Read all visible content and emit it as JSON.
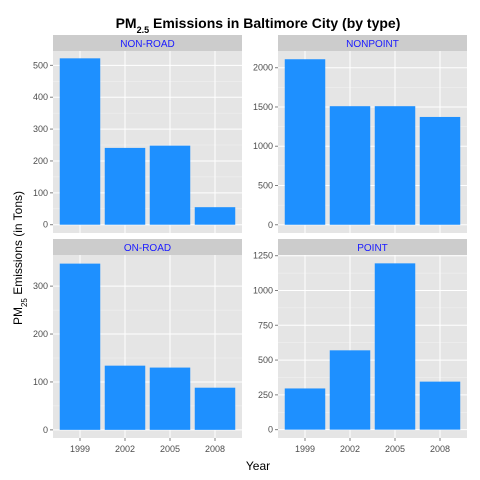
{
  "chart_data": {
    "type": "bar",
    "title": {
      "main": "PM",
      "sub": "2.5",
      "rest": " Emissions in Baltimore City (by type)"
    },
    "xlabel": "Year",
    "ylabel": {
      "main": "PM",
      "sub": "25",
      "rest": " Emissions (in Tons)"
    },
    "categories": [
      "1999",
      "2002",
      "2005",
      "2008"
    ],
    "bar_color": "#1E90FF",
    "panel_bg": "#E5E5E5",
    "strip_bg": "#CCCCCC",
    "strip_text_color": "#1A1AFF",
    "grid": true,
    "facets": [
      {
        "name": "NON-ROAD",
        "values": [
          522,
          241,
          248,
          55
        ],
        "ylim": [
          -26,
          545
        ],
        "ticks": [
          0,
          100,
          200,
          300,
          400,
          500
        ]
      },
      {
        "name": "NONPOINT",
        "values": [
          2108,
          1510,
          1510,
          1373
        ],
        "ylim": [
          -105,
          2213
        ],
        "ticks": [
          0,
          500,
          1000,
          1500,
          2000
        ]
      },
      {
        "name": "ON-ROAD",
        "values": [
          347,
          134,
          130,
          88
        ],
        "ylim": [
          -17,
          365
        ],
        "ticks": [
          0,
          100,
          200,
          300
        ]
      },
      {
        "name": "POINT",
        "values": [
          296,
          570,
          1195,
          345
        ],
        "ylim": [
          -60,
          1255
        ],
        "ticks": [
          0,
          250,
          500,
          750,
          1000,
          1250
        ]
      }
    ]
  }
}
